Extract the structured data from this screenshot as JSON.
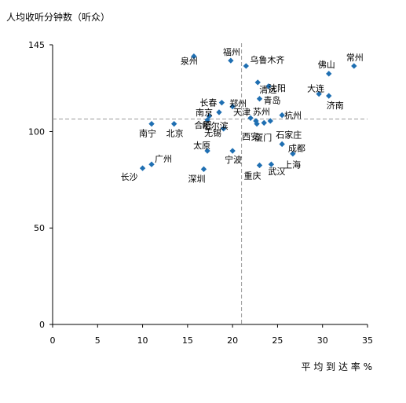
{
  "chart_data": {
    "type": "scatter",
    "title": "",
    "ylabel": "人均收听分钟数（听众）",
    "xlabel": "平 均 到 达 率 %",
    "xlim": [
      0,
      35
    ],
    "ylim": [
      0,
      145
    ],
    "xticks": [
      "0",
      "5",
      "10",
      "15",
      "20",
      "25",
      "30",
      "35"
    ],
    "xtick_values": [
      0,
      5,
      10,
      15,
      20,
      25,
      30,
      35
    ],
    "yticks": [
      "0",
      "50",
      "100",
      "145"
    ],
    "ytick_values": [
      0,
      50,
      100,
      145
    ],
    "ref_x": 21.0,
    "ref_y": 106.5,
    "grid": false,
    "marker_color": "#1f6fb2",
    "ref_line_color": "#999999",
    "points": [
      {
        "name": "泉州",
        "x": 15.7,
        "y": 139.0
      },
      {
        "name": "福州",
        "x": 19.8,
        "y": 136.8
      },
      {
        "name": "乌鲁木齐",
        "x": 21.5,
        "y": 134.0
      },
      {
        "name": "佛山",
        "x": 30.7,
        "y": 130.0
      },
      {
        "name": "常州",
        "x": 33.5,
        "y": 134.0
      },
      {
        "name": "清远",
        "x": 22.8,
        "y": 125.5
      },
      {
        "name": "沈阳",
        "x": 24.0,
        "y": 123.5
      },
      {
        "name": "大连",
        "x": 29.6,
        "y": 119.5
      },
      {
        "name": "济南",
        "x": 30.7,
        "y": 118.5
      },
      {
        "name": "长春",
        "x": 18.8,
        "y": 115.0
      },
      {
        "name": "郑州",
        "x": 20.0,
        "y": 113.0
      },
      {
        "name": "青岛",
        "x": 23.0,
        "y": 117.0
      },
      {
        "name": "南京",
        "x": 18.5,
        "y": 110.0
      },
      {
        "name": "天津",
        "x": 22.0,
        "y": 107.0
      },
      {
        "name": "苏州",
        "x": 22.6,
        "y": 105.5
      },
      {
        "name": "杭州",
        "x": 25.5,
        "y": 108.5
      },
      {
        "name": "合肥",
        "x": 17.4,
        "y": 108.0
      },
      {
        "name": "哈尔滨",
        "x": 19.0,
        "y": 101.5
      },
      {
        "name": "南宁",
        "x": 11.0,
        "y": 104.0
      },
      {
        "name": "北京",
        "x": 13.5,
        "y": 104.0
      },
      {
        "name": "无锡",
        "x": 17.2,
        "y": 106.0
      },
      {
        "name": "西安",
        "x": 22.7,
        "y": 104.0
      },
      {
        "name": "石家庄",
        "x": 23.5,
        "y": 104.5
      },
      {
        "name": "厦门",
        "x": 24.2,
        "y": 105.5
      },
      {
        "name": "太原",
        "x": 17.2,
        "y": 90.0
      },
      {
        "name": "宁波",
        "x": 20.0,
        "y": 90.0
      },
      {
        "name": "成都",
        "x": 26.7,
        "y": 88.5
      },
      {
        "name": "广州",
        "x": 11.0,
        "y": 83.0
      },
      {
        "name": "长沙",
        "x": 10.0,
        "y": 81.0
      },
      {
        "name": "深圳",
        "x": 16.8,
        "y": 80.5
      },
      {
        "name": "重庆",
        "x": 23.0,
        "y": 82.5
      },
      {
        "name": "武汉",
        "x": 24.3,
        "y": 83.0
      },
      {
        "name": "上海",
        "x": 25.5,
        "y": 93.5
      }
    ]
  }
}
